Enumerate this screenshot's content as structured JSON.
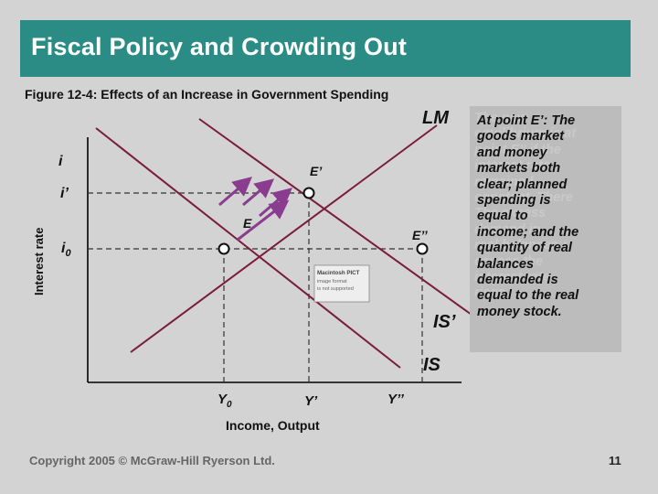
{
  "slide": {
    "title": "Fiscal Policy and Crowding Out",
    "figure_caption": "Figure 12-4: Effects of an Increase in Government Spending",
    "copyright": "Copyright 2005 © McGraw-Hill Ryerson Ltd.",
    "page_number": "11"
  },
  "diagram": {
    "y_axis_label": "Interest rate",
    "x_axis_label": "Income, Output",
    "y_labels": {
      "i": "i",
      "i_prime": "i’",
      "i0_base": "i",
      "i0_sub": "0"
    },
    "x_labels": {
      "y0_base": "Y",
      "y0_sub": "0",
      "y_prime": "Y’",
      "y_double": "Y’’"
    },
    "curve_labels": {
      "lm": "LM",
      "is": "IS",
      "is_prime": "IS’"
    },
    "point_labels": {
      "e": "E",
      "e_prime": "E’",
      "e_double": "E’’"
    },
    "sticker": {
      "line1": "Macintosh PICT",
      "line2": "image format",
      "line3": "is not supported"
    }
  },
  "side_panel": {
    "ghost_text": "The new\nequilibrium is at\npoint E’’ if the\ninterest rate\nremained\nconstant. There\nThe excess\ndemand in\nreal balances ↑\ncauses the\ninterest rate\nrises",
    "main_text": "At point E’: The\ngoods market\nand money\nmarkets both\nclear; planned\nspending is\nequal to\nincome; and the\nquantity of real\nbalances\ndemanded is\nequal to the real\nmoney stock."
  },
  "colors": {
    "title_bar": "#2a8c84",
    "curves": "#7a1c3a",
    "arrows": "#8a3c8f",
    "background": "#d3d3d3"
  }
}
